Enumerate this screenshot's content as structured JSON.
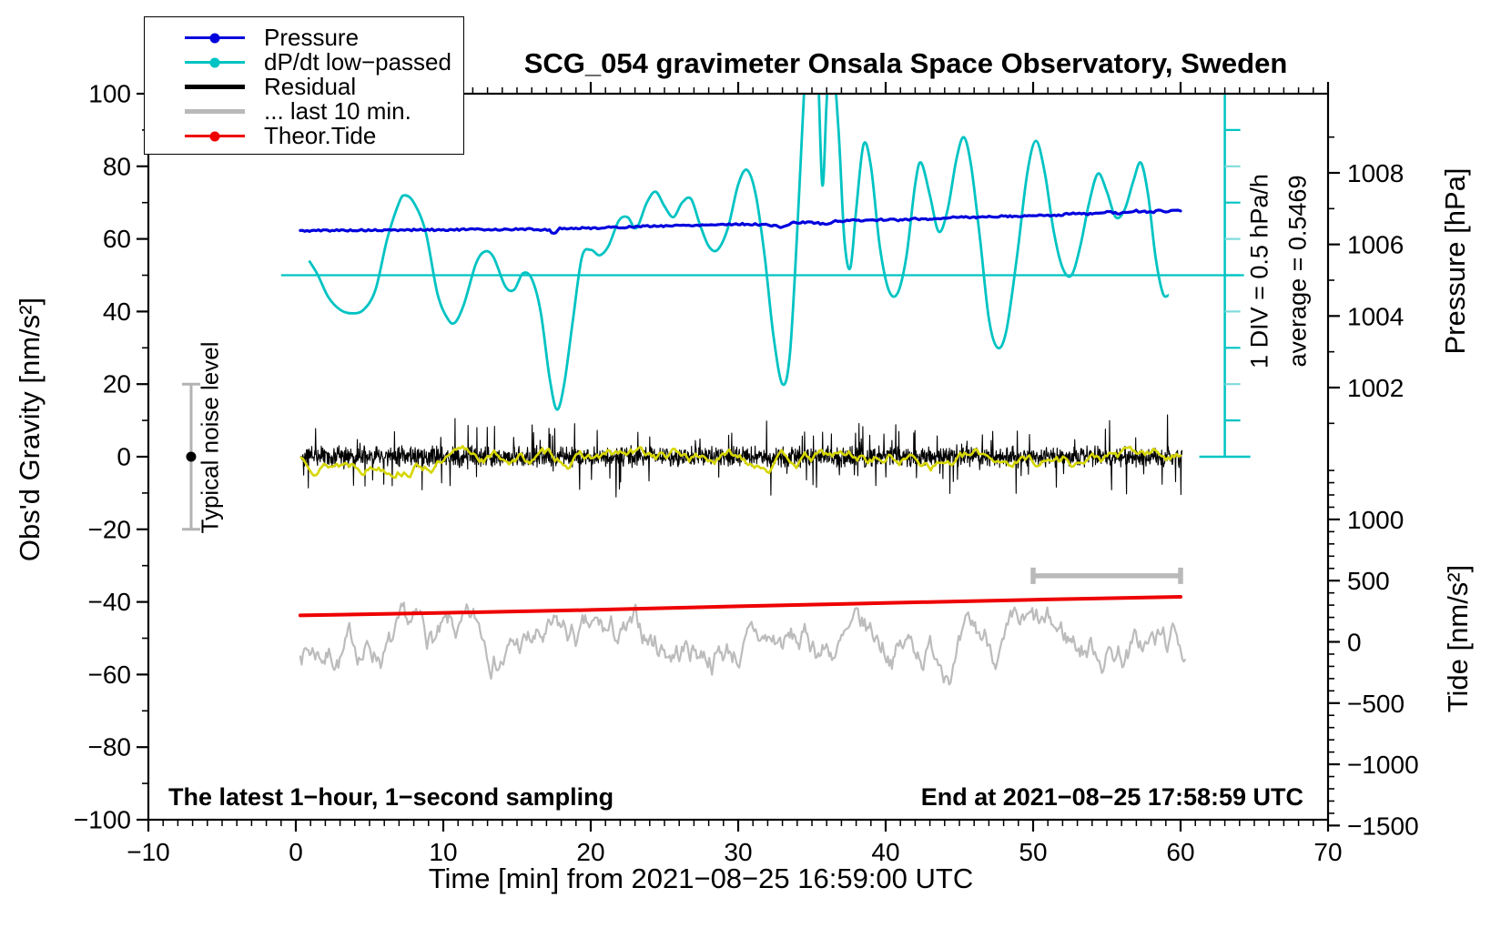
{
  "title": "SCG_054 gravimeter Onsala Space Observatory, Sweden",
  "annotations": {
    "div_note": "1 DIV = 0.5 hPa/h",
    "average_note": "average = 0.5469",
    "noise_label": "Typical noise level",
    "sampling_note": "The latest 1−hour, 1−second sampling",
    "end_note": "End at 2021−08−25 17:58:59 UTC"
  },
  "legend": {
    "items": [
      {
        "slug": "pressure",
        "label": "Pressure",
        "color": "#0000dd",
        "thick": false,
        "dot": true
      },
      {
        "slug": "dpdt",
        "label": "dP/dt low−passed",
        "color": "#00c3c3",
        "thick": false,
        "dot": true
      },
      {
        "slug": "residual",
        "label": "Residual",
        "color": "#000000",
        "thick": true,
        "dot": false
      },
      {
        "slug": "last10min",
        "label": "... last 10 min.",
        "color": "#b9b9b9",
        "thick": true,
        "dot": false
      },
      {
        "slug": "tide",
        "label": "Theor.Tide",
        "color": "#ee0000",
        "thick": false,
        "dot": true
      }
    ]
  },
  "colors": {
    "pressure_blue": "#0000dd",
    "dpdt_cyan": "#00c3c3",
    "dpdt_cyan_light": "#7fdcdc",
    "residual_black": "#000000",
    "lowpass_yellow": "#d6d600",
    "gray_series": "#bcbcbc",
    "gray_bar": "#b9b9b9",
    "errorbar_gray": "#b3b3b3",
    "tide_red": "#ee0000"
  },
  "chart_data": {
    "type": "line",
    "title": "SCG_054 gravimeter Onsala Space Observatory, Sweden",
    "xlabel": "Time [min] from 2021−08−25 16:59:00 UTC",
    "axes": {
      "left": {
        "label": "Obs'd Gravity [nm/s²]",
        "min": -100,
        "max": 100,
        "major_step": 20,
        "minor_step": 10,
        "tick_values": [
          100,
          80,
          60,
          40,
          20,
          0,
          -20,
          -40,
          -60,
          -80,
          -100
        ],
        "tick_labels": [
          "100",
          "80",
          "60",
          "40",
          "20",
          "0",
          "−20",
          "−40",
          "−60",
          "−80",
          "−100"
        ]
      },
      "bottom": {
        "min": -10,
        "max": 70,
        "major_step": 10,
        "minor_step": 1,
        "tick_values": [
          -10,
          0,
          10,
          20,
          30,
          40,
          50,
          60,
          70
        ],
        "tick_labels": [
          "−10",
          "0",
          "10",
          "20",
          "30",
          "40",
          "50",
          "60",
          "70"
        ]
      },
      "right_pressure": {
        "label": "Pressure [hPa]",
        "tick_values": [
          1008,
          1006,
          1004,
          1002
        ],
        "tick_labels": [
          "1008",
          "1006",
          "1004",
          "1002"
        ],
        "minor_from": 1009,
        "minor_to": 1001,
        "minor_step": 1
      },
      "right_tide": {
        "label": "Tide [nm/s²]",
        "tick_values": [
          1000,
          500,
          0,
          -500,
          -1000,
          -1500
        ],
        "tick_labels": [
          "1000",
          "500",
          "0",
          "−500",
          "−1000",
          "−1500"
        ],
        "minor_from": 1400,
        "minor_to": -1500,
        "minor_step": 100
      }
    },
    "series": [
      {
        "name": "Pressure",
        "type": "line",
        "color": "#0000dd",
        "width": 3.2,
        "jitter": 0.25,
        "points": [
          [
            0.3,
            62.2
          ],
          [
            2,
            62.35
          ],
          [
            4,
            62.4
          ],
          [
            6,
            62.35
          ],
          [
            8,
            62.5
          ],
          [
            10,
            62.5
          ],
          [
            12,
            62.6
          ],
          [
            14,
            62.6
          ],
          [
            16,
            62.7
          ],
          [
            17.2,
            62.4
          ],
          [
            17.5,
            61.4
          ],
          [
            17.9,
            62.9
          ],
          [
            19,
            62.9
          ],
          [
            20,
            63
          ],
          [
            22,
            63.2
          ],
          [
            24,
            63.5
          ],
          [
            26,
            63.7
          ],
          [
            28,
            63.9
          ],
          [
            30,
            64.1
          ],
          [
            31,
            64
          ],
          [
            32,
            63.9
          ],
          [
            33,
            63.2
          ],
          [
            33.6,
            64.4
          ],
          [
            35,
            64.6
          ],
          [
            36,
            64
          ],
          [
            36.6,
            64.9
          ],
          [
            38,
            65.1
          ],
          [
            40,
            65.3
          ],
          [
            41,
            65.2
          ],
          [
            42,
            65.5
          ],
          [
            43,
            65.4
          ],
          [
            44,
            65.8
          ],
          [
            45,
            66.1
          ],
          [
            46,
            65.9
          ],
          [
            47,
            66.1
          ],
          [
            48,
            66.3
          ],
          [
            49,
            66.2
          ],
          [
            50,
            66.5
          ],
          [
            51,
            66.4
          ],
          [
            52,
            66.7
          ],
          [
            53,
            67.1
          ],
          [
            54,
            66.8
          ],
          [
            55,
            67.4
          ],
          [
            56,
            67
          ],
          [
            57,
            67.7
          ],
          [
            58,
            67.3
          ],
          [
            58.5,
            67.8
          ],
          [
            59,
            67.5
          ],
          [
            59.5,
            68
          ],
          [
            60,
            67.7
          ]
        ]
      },
      {
        "name": "dP/dt low−passed",
        "type": "smooth",
        "color": "#00c3c3",
        "width": 2.8,
        "points": [
          [
            0.9,
            54
          ],
          [
            1.5,
            50
          ],
          [
            2.2,
            44
          ],
          [
            3,
            40.5
          ],
          [
            3.8,
            39.5
          ],
          [
            4.6,
            40.5
          ],
          [
            5.4,
            46
          ],
          [
            6.2,
            60
          ],
          [
            7,
            70
          ],
          [
            7.4,
            72
          ],
          [
            8,
            70
          ],
          [
            8.8,
            62
          ],
          [
            9.6,
            45
          ],
          [
            10.3,
            38
          ],
          [
            10.8,
            37
          ],
          [
            11.4,
            42
          ],
          [
            12.2,
            53
          ],
          [
            12.8,
            56.5
          ],
          [
            13.4,
            55
          ],
          [
            14.2,
            47
          ],
          [
            14.8,
            46
          ],
          [
            15.4,
            50.5
          ],
          [
            16,
            49
          ],
          [
            16.6,
            40
          ],
          [
            17.2,
            22
          ],
          [
            17.7,
            13
          ],
          [
            18.2,
            20
          ],
          [
            18.8,
            38
          ],
          [
            19.4,
            55
          ],
          [
            20,
            57
          ],
          [
            20.6,
            55.5
          ],
          [
            21.2,
            58
          ],
          [
            21.9,
            65
          ],
          [
            22.5,
            66
          ],
          [
            23.1,
            63
          ],
          [
            23.8,
            70
          ],
          [
            24.4,
            73
          ],
          [
            25,
            69
          ],
          [
            25.6,
            66
          ],
          [
            26.2,
            70
          ],
          [
            26.8,
            71
          ],
          [
            27.4,
            64
          ],
          [
            28,
            58
          ],
          [
            28.6,
            57
          ],
          [
            29.3,
            63
          ],
          [
            30,
            75
          ],
          [
            30.6,
            79
          ],
          [
            31.2,
            72
          ],
          [
            31.8,
            55
          ],
          [
            32.4,
            33
          ],
          [
            33,
            20
          ],
          [
            33.5,
            28
          ],
          [
            34,
            62
          ],
          [
            34.4,
            95
          ],
          [
            34.7,
            115
          ],
          [
            35.3,
            115
          ],
          [
            35.7,
            75
          ],
          [
            36,
            98
          ],
          [
            36.3,
            115
          ],
          [
            36.8,
            90
          ],
          [
            37.2,
            60
          ],
          [
            37.6,
            52
          ],
          [
            38,
            68
          ],
          [
            38.5,
            86
          ],
          [
            39,
            80
          ],
          [
            39.6,
            58
          ],
          [
            40.2,
            46
          ],
          [
            40.8,
            45
          ],
          [
            41.4,
            55
          ],
          [
            42,
            75
          ],
          [
            42.4,
            81
          ],
          [
            43,
            72
          ],
          [
            43.6,
            62
          ],
          [
            44.2,
            68
          ],
          [
            44.8,
            82
          ],
          [
            45.3,
            88
          ],
          [
            45.8,
            80
          ],
          [
            46.4,
            60
          ],
          [
            47,
            38
          ],
          [
            47.6,
            30
          ],
          [
            48.2,
            35
          ],
          [
            48.9,
            55
          ],
          [
            49.6,
            78
          ],
          [
            50.2,
            87
          ],
          [
            50.8,
            78
          ],
          [
            51.4,
            62
          ],
          [
            52,
            52
          ],
          [
            52.6,
            50
          ],
          [
            53.2,
            58
          ],
          [
            53.8,
            70
          ],
          [
            54.4,
            78
          ],
          [
            55,
            73
          ],
          [
            55.6,
            66
          ],
          [
            56.2,
            68
          ],
          [
            56.8,
            76
          ],
          [
            57.3,
            81
          ],
          [
            57.8,
            72
          ],
          [
            58.3,
            55
          ],
          [
            58.8,
            45
          ],
          [
            59.2,
            44.5
          ]
        ]
      },
      {
        "name": "Residual",
        "type": "noise",
        "color": "#000000",
        "width": 1.1,
        "center": 0,
        "spread": 3.2,
        "spike_prob": 0.05,
        "spike_amp": 9,
        "n": 2300,
        "x_start": 0.35,
        "x_end": 60.1,
        "seed": 42
      },
      {
        "name": "Residual low−passed (yellow)",
        "type": "walk",
        "color": "#d6d600",
        "width": 2.6,
        "center": -0.4,
        "amp": 1.1,
        "n": 420,
        "x_start": 0.35,
        "x_end": 60,
        "seed": 13
      },
      {
        "name": "... last 10 min.",
        "type": "walk",
        "color": "#bcbcbc",
        "width": 2.2,
        "center": -52.2,
        "amp": 2.6,
        "n": 650,
        "x_start": 0.3,
        "x_end": 60.3,
        "seed": 7
      },
      {
        "name": "Theor.Tide",
        "type": "line",
        "color": "#ee0000",
        "width": 4,
        "jitter": 0,
        "points": [
          [
            0.3,
            -43.7
          ],
          [
            10,
            -43
          ],
          [
            20,
            -42.2
          ],
          [
            30,
            -41.2
          ],
          [
            40,
            -40.3
          ],
          [
            50,
            -39.4
          ],
          [
            60,
            -38.6
          ]
        ]
      }
    ],
    "extras": {
      "average_line": {
        "gravity_level": 50,
        "x_from": -1,
        "x_to": 64.3
      },
      "dpdt_scale_axis": {
        "x": 63,
        "top_gravity": 100,
        "bottom_gravity": 0,
        "div_step": 10
      },
      "noise_error_bar": {
        "x": -7.1,
        "center_gravity": 0,
        "half_range": 20
      },
      "last10min_bar": {
        "x_from": 50,
        "x_to": 60,
        "gravity_level": -32.8
      }
    },
    "xlim": [
      -10,
      70
    ],
    "ylim": [
      -100,
      100
    ],
    "grid": false
  }
}
